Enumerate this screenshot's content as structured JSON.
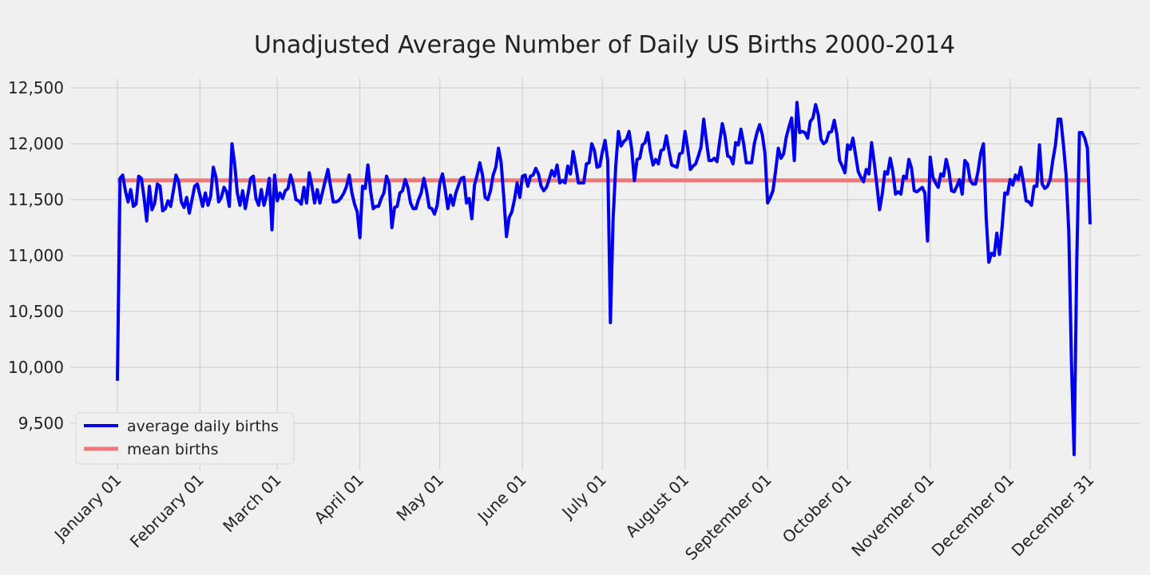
{
  "chart_data": {
    "type": "line",
    "title": "Unadjusted Average Number of Daily US Births 2000-2014",
    "xlabel": "",
    "ylabel": "",
    "x_range": [
      1,
      366
    ],
    "ylim": [
      9150,
      12600
    ],
    "y_ticks": [
      9500,
      10000,
      10500,
      11000,
      11500,
      12000,
      12500
    ],
    "y_tick_labels": [
      "9,500",
      "10,000",
      "10,500",
      "11,000",
      "11,500",
      "12,000",
      "12,500"
    ],
    "x_ticks": [
      1,
      32,
      61,
      92,
      122,
      153,
      183,
      214,
      245,
      275,
      306,
      336,
      366
    ],
    "x_tick_labels": [
      "January 01",
      "February 01",
      "March 01",
      "April 01",
      "May 01",
      "June 01",
      "July 01",
      "August 01",
      "September 01",
      "October 01",
      "November 01",
      "December 01",
      "December 31"
    ],
    "grid": true,
    "legend_position": "lower-left",
    "series": [
      {
        "name": "average daily births",
        "color": "#0000ee",
        "x_start": 1,
        "x_step": 1,
        "values": [
          9880,
          11690,
          11720,
          11580,
          11480,
          11590,
          11440,
          11460,
          11710,
          11690,
          11520,
          11310,
          11620,
          11410,
          11470,
          11640,
          11620,
          11400,
          11420,
          11490,
          11440,
          11580,
          11720,
          11660,
          11480,
          11430,
          11520,
          11380,
          11500,
          11620,
          11640,
          11540,
          11440,
          11560,
          11450,
          11530,
          11790,
          11700,
          11480,
          11520,
          11610,
          11570,
          11440,
          12000,
          11820,
          11560,
          11450,
          11580,
          11420,
          11550,
          11690,
          11710,
          11510,
          11450,
          11590,
          11450,
          11540,
          11690,
          11230,
          11720,
          11490,
          11560,
          11510,
          11580,
          11600,
          11720,
          11630,
          11500,
          11490,
          11460,
          11610,
          11470,
          11740,
          11620,
          11470,
          11590,
          11470,
          11570,
          11670,
          11770,
          11620,
          11480,
          11480,
          11490,
          11520,
          11560,
          11620,
          11720,
          11560,
          11460,
          11390,
          11160,
          11620,
          11600,
          11810,
          11580,
          11420,
          11440,
          11440,
          11510,
          11560,
          11710,
          11640,
          11250,
          11430,
          11440,
          11560,
          11580,
          11680,
          11610,
          11470,
          11420,
          11420,
          11500,
          11560,
          11690,
          11580,
          11430,
          11420,
          11370,
          11450,
          11650,
          11730,
          11590,
          11420,
          11540,
          11450,
          11560,
          11630,
          11690,
          11700,
          11470,
          11510,
          11330,
          11630,
          11720,
          11830,
          11720,
          11520,
          11500,
          11580,
          11720,
          11790,
          11960,
          11830,
          11520,
          11170,
          11340,
          11390,
          11500,
          11650,
          11520,
          11710,
          11720,
          11620,
          11710,
          11720,
          11780,
          11730,
          11620,
          11580,
          11610,
          11680,
          11760,
          11710,
          11810,
          11650,
          11670,
          11650,
          11800,
          11730,
          11930,
          11800,
          11650,
          11650,
          11650,
          11820,
          11830,
          12000,
          11940,
          11790,
          11800,
          11930,
          12030,
          11850,
          10400,
          11320,
          11800,
          12110,
          11980,
          12020,
          12040,
          12110,
          11950,
          11670,
          11860,
          11870,
          11990,
          12010,
          12100,
          11930,
          11810,
          11860,
          11820,
          11940,
          11950,
          12070,
          11930,
          11810,
          11800,
          11790,
          11910,
          11920,
          12110,
          11960,
          11770,
          11800,
          11820,
          11890,
          11970,
          12220,
          12030,
          11850,
          11850,
          11870,
          11840,
          12020,
          12180,
          12070,
          11890,
          11880,
          11820,
          12010,
          11990,
          12130,
          12000,
          11830,
          11830,
          11830,
          12000,
          12100,
          12170,
          12080,
          11910,
          11470,
          11520,
          11580,
          11760,
          11960,
          11870,
          11910,
          12060,
          12150,
          12230,
          11850,
          12370,
          12100,
          12110,
          12100,
          12050,
          12200,
          12230,
          12350,
          12260,
          12040,
          12000,
          12020,
          12100,
          12110,
          12210,
          12080,
          11850,
          11800,
          11740,
          11990,
          11950,
          12050,
          11900,
          11750,
          11700,
          11660,
          11770,
          11730,
          12010,
          11830,
          11630,
          11410,
          11550,
          11750,
          11730,
          11870,
          11750,
          11550,
          11570,
          11550,
          11710,
          11690,
          11860,
          11780,
          11580,
          11570,
          11590,
          11610,
          11560,
          11130,
          11880,
          11700,
          11650,
          11610,
          11730,
          11710,
          11860,
          11760,
          11580,
          11570,
          11620,
          11680,
          11550,
          11850,
          11820,
          11670,
          11640,
          11640,
          11760,
          11920,
          12000,
          11340,
          10940,
          11020,
          11000,
          11200,
          11010,
          11260,
          11560,
          11550,
          11680,
          11630,
          11720,
          11680,
          11790,
          11650,
          11490,
          11480,
          11450,
          11620,
          11620,
          11990,
          11640,
          11600,
          11620,
          11680,
          11850,
          11990,
          12220,
          12220,
          11990,
          11720,
          11220,
          10050,
          9220,
          10950,
          12100,
          12100,
          12050,
          11960,
          11280
        ]
      },
      {
        "name": "mean births",
        "color": "#f07878",
        "constant_value": 11672
      }
    ]
  }
}
